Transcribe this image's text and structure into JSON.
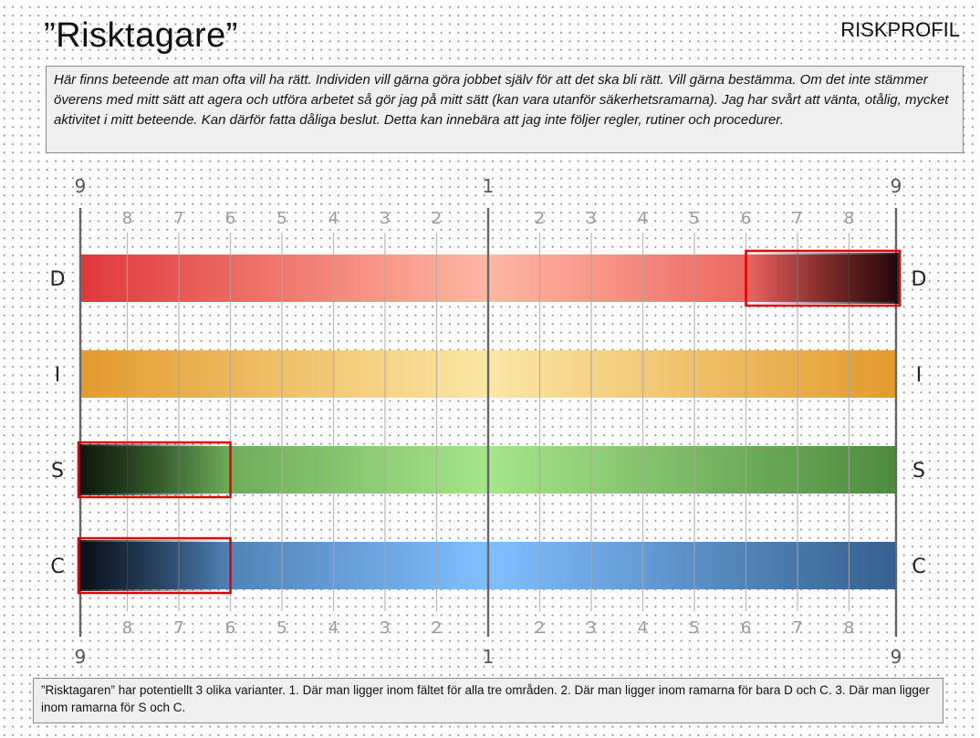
{
  "header": {
    "title": "”Risktagare”",
    "corner_label": "RISKPROFIL"
  },
  "description": "Här finns beteende att man ofta vill ha rätt. Individen vill gärna göra jobbet själv för att det ska bli rätt. Vill gärna bestämma. Om det inte stämmer överens med mitt sätt att agera och utföra arbetet så gör jag på mitt sätt (kan vara utanför säkerhetsramarna). Jag har svårt att vänta, otålig, mycket aktivitet i mitt beteende. Kan därför fatta dåliga beslut. Detta kan innebära att jag inte följer regler, rutiner och procedurer.",
  "scale": {
    "outer_left": "9",
    "center": "1",
    "outer_right": "9",
    "inner_left": [
      "8",
      "7",
      "6",
      "5",
      "4",
      "3",
      "2"
    ],
    "inner_right": [
      "2",
      "3",
      "4",
      "5",
      "6",
      "7",
      "8"
    ]
  },
  "rows": [
    {
      "label": "D",
      "colors": {
        "outer": "#e0383c",
        "center": "#ffb8a3"
      }
    },
    {
      "label": "I",
      "colors": {
        "outer": "#e39a2e",
        "center": "#fbe7a5"
      }
    },
    {
      "label": "S",
      "colors": {
        "outer": "#4e8a3e",
        "center": "#a6e68a"
      }
    },
    {
      "label": "C",
      "colors": {
        "outer": "#36608e",
        "center": "#80bfff"
      }
    }
  ],
  "highlights": [
    {
      "row": "D",
      "side": "right",
      "from": 6,
      "to": 9
    },
    {
      "row": "S",
      "side": "left",
      "from": 9,
      "to": 6
    },
    {
      "row": "C",
      "side": "left",
      "from": 9,
      "to": 6
    }
  ],
  "highlight_color": "#e00000",
  "note": "”Risktagaren” har potentiellt 3 olika varianter. 1. Där man ligger inom fältet för alla tre områden. 2. Där man ligger inom ramarna för bara D och C. 3. Där man ligger inom ramarna för S och C."
}
